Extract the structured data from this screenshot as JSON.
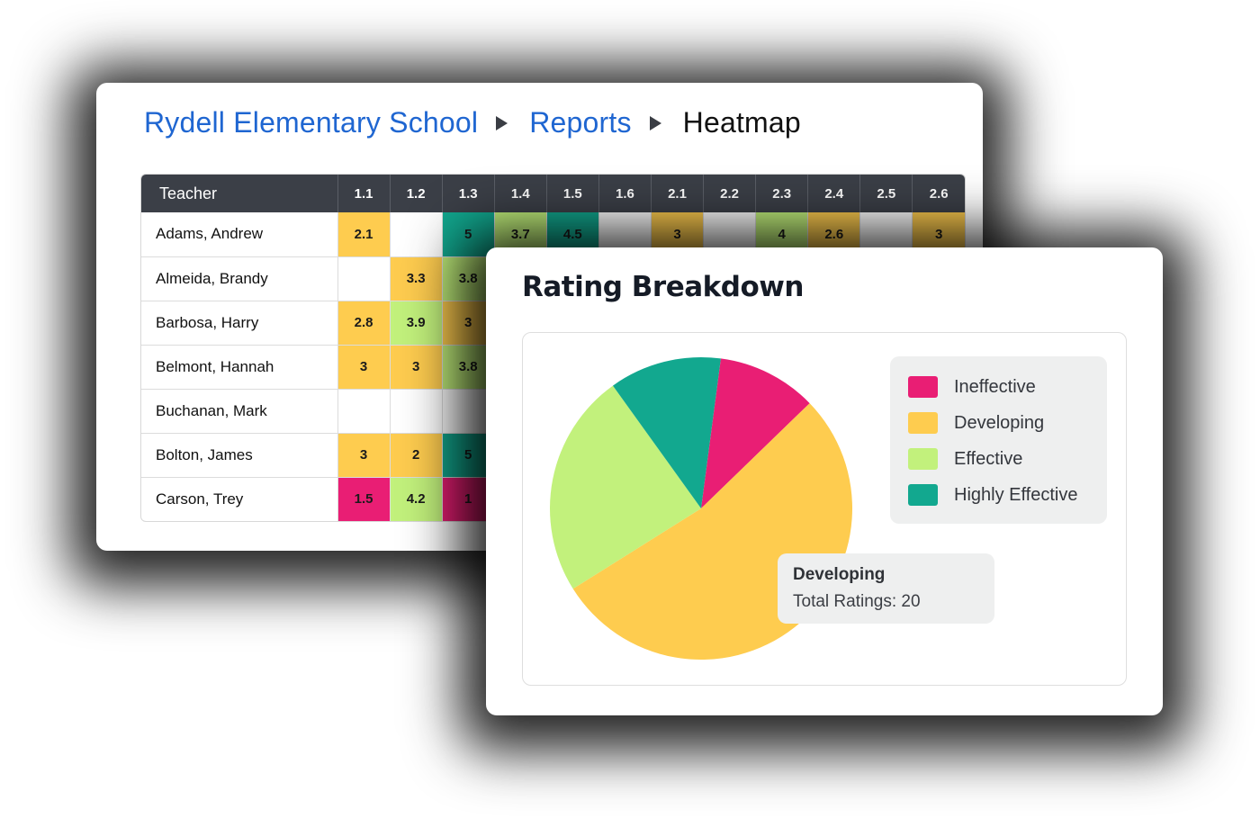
{
  "heatmap_card": {
    "breadcrumb": [
      {
        "label": "Rydell Elementary School",
        "link": true
      },
      {
        "label": "Reports",
        "link": true
      },
      {
        "label": "Heatmap",
        "link": false
      }
    ],
    "table": {
      "teacher_header": "Teacher",
      "columns": [
        "1.1",
        "1.2",
        "1.3",
        "1.4",
        "1.5",
        "1.6",
        "2.1",
        "2.2",
        "2.3",
        "2.4",
        "2.5",
        "2.6"
      ],
      "rows": [
        {
          "teacher": "Adams, Andrew",
          "values": [
            "2.1",
            "",
            "5",
            "3.7",
            "4.5",
            "",
            "3",
            "",
            "4",
            "2.6",
            "",
            "3"
          ]
        },
        {
          "teacher": "Almeida, Brandy",
          "values": [
            "",
            "3.3",
            "3.8",
            "",
            "",
            "",
            "",
            "",
            "",
            "",
            "",
            ""
          ]
        },
        {
          "teacher": "Barbosa, Harry",
          "values": [
            "2.8",
            "3.9",
            "3",
            "",
            "",
            "",
            "",
            "",
            "",
            "",
            "",
            ""
          ]
        },
        {
          "teacher": "Belmont, Hannah",
          "values": [
            "3",
            "3",
            "3.8",
            "",
            "",
            "",
            "",
            "",
            "",
            "",
            "",
            ""
          ]
        },
        {
          "teacher": "Buchanan, Mark",
          "values": [
            "",
            "",
            "",
            "",
            "",
            "",
            "",
            "",
            "",
            "",
            "",
            ""
          ]
        },
        {
          "teacher": "Bolton, James",
          "values": [
            "3",
            "2",
            "5",
            "",
            "",
            "",
            "",
            "",
            "",
            "",
            "",
            ""
          ]
        },
        {
          "teacher": "Carson, Trey",
          "values": [
            "1.5",
            "4.2",
            "1",
            "",
            "",
            "",
            "",
            "",
            "",
            "",
            "",
            ""
          ]
        }
      ]
    },
    "scale_colors": {
      "ineffective": "#e91e74",
      "developing": "#fecc4f",
      "effective": "#c2f17c",
      "highly_effective": "#12a88f",
      "empty": "#ffffff"
    }
  },
  "rating_card": {
    "title": "Rating Breakdown",
    "legend": [
      {
        "label": "Ineffective",
        "color": "#e91e74"
      },
      {
        "label": "Developing",
        "color": "#fecc4f"
      },
      {
        "label": "Effective",
        "color": "#c2f17c"
      },
      {
        "label": "Highly Effective",
        "color": "#12a88f"
      }
    ],
    "tooltip": {
      "title": "Developing",
      "value": "Total Ratings: 20"
    }
  },
  "chart_data": [
    {
      "type": "heatmap",
      "title": "Heatmap",
      "x": [
        "1.1",
        "1.2",
        "1.3",
        "1.4",
        "1.5",
        "1.6",
        "2.1",
        "2.2",
        "2.3",
        "2.4",
        "2.5",
        "2.6"
      ],
      "y": [
        "Adams, Andrew",
        "Almeida, Brandy",
        "Barbosa, Harry",
        "Belmont, Hannah",
        "Buchanan, Mark",
        "Bolton, James",
        "Carson, Trey"
      ],
      "values_visible": [
        [
          2.1,
          null,
          5,
          3.7,
          4.5,
          null,
          3,
          null,
          4,
          2.6,
          null,
          3
        ],
        [
          null,
          3.3,
          3.8
        ],
        [
          2.8,
          3.9,
          3
        ],
        [
          3,
          3,
          3.8
        ],
        [
          null,
          null,
          null
        ],
        [
          3,
          2,
          5
        ],
        [
          1.5,
          4.2,
          1
        ]
      ],
      "ylabel": "Teacher"
    },
    {
      "type": "pie",
      "title": "Rating Breakdown",
      "categories": [
        "Ineffective",
        "Developing",
        "Effective",
        "Highly Effective"
      ],
      "values": [
        4,
        20,
        9,
        4.5
      ],
      "start_angle_deg": 7.5,
      "colors": [
        "#e91e74",
        "#fecc4f",
        "#c2f17c",
        "#12a88f"
      ],
      "legend_position": "right",
      "tooltip": {
        "category": "Developing",
        "label": "Total Ratings",
        "value": 20
      }
    }
  ]
}
